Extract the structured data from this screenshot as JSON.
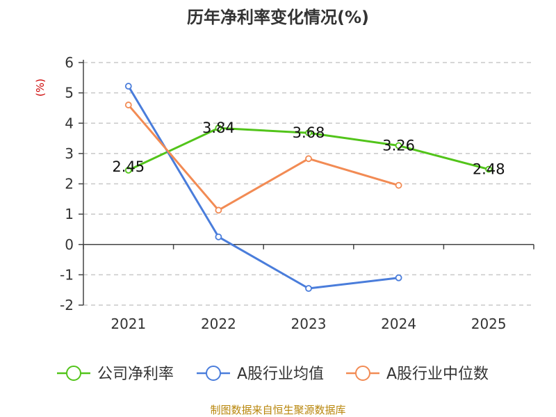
{
  "chart_data": {
    "type": "line",
    "title": "历年净利率变化情况(%)",
    "ylabel": "(%)",
    "categories": [
      "2021",
      "2022",
      "2023",
      "2024",
      "2025"
    ],
    "ylim": [
      -2,
      6
    ],
    "yticks": [
      6,
      5,
      4,
      3,
      2,
      1,
      0,
      -1,
      -2
    ],
    "grid": true,
    "legend_position": "bottom",
    "series": [
      {
        "name": "公司净利率",
        "color": "#52c41a",
        "values": [
          2.45,
          3.84,
          3.68,
          3.26,
          2.48
        ],
        "labels": [
          "2.45",
          "3.84",
          "3.68",
          "3.26",
          "2.48"
        ]
      },
      {
        "name": "A股行业均值",
        "color": "#4a7ddb",
        "values": [
          5.22,
          0.25,
          -1.45,
          -1.1,
          null
        ]
      },
      {
        "name": "A股行业中位数",
        "color": "#f28b54",
        "values": [
          4.6,
          1.13,
          2.83,
          1.95,
          null
        ]
      }
    ],
    "source": "制图数据来自恒生聚源数据库"
  }
}
